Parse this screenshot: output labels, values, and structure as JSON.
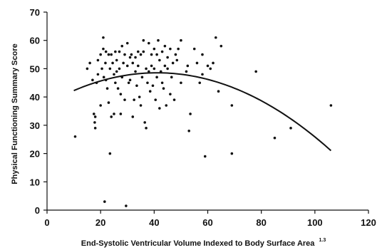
{
  "chart_data": {
    "type": "scatter",
    "title": "",
    "xlabel": "End-Systolic Ventricular Volume Indexed to Body Surface Area",
    "xlabel_superscript": "1.3",
    "ylabel": "Physical Functioning Summary Score",
    "xlim": [
      0,
      120
    ],
    "ylim": [
      0,
      70
    ],
    "xticks": [
      0,
      20,
      40,
      60,
      80,
      100,
      120
    ],
    "yticks": [
      0,
      10,
      20,
      30,
      40,
      50,
      60,
      70
    ],
    "grid": false,
    "legend": "none",
    "point_color": "#111111",
    "curve_color": "#111111",
    "fit_curve": {
      "type": "quadratic",
      "x": [
        10,
        15,
        20,
        25,
        30,
        35,
        40,
        45,
        50,
        55,
        60,
        65,
        70,
        75,
        80,
        85,
        90,
        95,
        100,
        106
      ],
      "y": [
        42.0,
        43.8,
        45.4,
        46.7,
        47.7,
        48.5,
        48.9,
        48.9,
        48.6,
        47.9,
        46.8,
        45.3,
        43.3,
        40.9,
        38.0,
        34.8,
        31.2,
        27.2,
        27.2,
        23.3
      ]
    },
    "points": [
      [
        10.5,
        26
      ],
      [
        15,
        50
      ],
      [
        16,
        52
      ],
      [
        17,
        46
      ],
      [
        17.5,
        34
      ],
      [
        17.8,
        31
      ],
      [
        18,
        29
      ],
      [
        18,
        33
      ],
      [
        18.5,
        45
      ],
      [
        19,
        53
      ],
      [
        19,
        48
      ],
      [
        20,
        55
      ],
      [
        20,
        37
      ],
      [
        20.5,
        50
      ],
      [
        21,
        57
      ],
      [
        21,
        61
      ],
      [
        21.2,
        47
      ],
      [
        21.5,
        3
      ],
      [
        21.8,
        52
      ],
      [
        22,
        56
      ],
      [
        22,
        46
      ],
      [
        22.5,
        43
      ],
      [
        23,
        55
      ],
      [
        23,
        38
      ],
      [
        23.5,
        50
      ],
      [
        23.5,
        20
      ],
      [
        24,
        55
      ],
      [
        24,
        33
      ],
      [
        24.5,
        52
      ],
      [
        25,
        34
      ],
      [
        25,
        48
      ],
      [
        25.5,
        56
      ],
      [
        25.5,
        45
      ],
      [
        26,
        49
      ],
      [
        26,
        53
      ],
      [
        26.5,
        43
      ],
      [
        27,
        56
      ],
      [
        27,
        50
      ],
      [
        27.5,
        34
      ],
      [
        27.5,
        41
      ],
      [
        28,
        58
      ],
      [
        28,
        47
      ],
      [
        28.5,
        52
      ],
      [
        29,
        55
      ],
      [
        29,
        39
      ],
      [
        29.5,
        1.5
      ],
      [
        30,
        51
      ],
      [
        30,
        59
      ],
      [
        30.5,
        45
      ],
      [
        31,
        54
      ],
      [
        31,
        46
      ],
      [
        31.5,
        55
      ],
      [
        32,
        52
      ],
      [
        32,
        33
      ],
      [
        32.5,
        39
      ],
      [
        33,
        54
      ],
      [
        33,
        49
      ],
      [
        33.5,
        44
      ],
      [
        34,
        56
      ],
      [
        34,
        51
      ],
      [
        34.5,
        40
      ],
      [
        35,
        55
      ],
      [
        35,
        37
      ],
      [
        35.5,
        47
      ],
      [
        36,
        56
      ],
      [
        36,
        60
      ],
      [
        36.5,
        31
      ],
      [
        37,
        50
      ],
      [
        37,
        29
      ],
      [
        37.5,
        45
      ],
      [
        38,
        59
      ],
      [
        38,
        49
      ],
      [
        38.5,
        42
      ],
      [
        39,
        55
      ],
      [
        39,
        51
      ],
      [
        39.5,
        44
      ],
      [
        40,
        57
      ],
      [
        40,
        50
      ],
      [
        40.5,
        39
      ],
      [
        41,
        55
      ],
      [
        41,
        47
      ],
      [
        41.5,
        60
      ],
      [
        42,
        53
      ],
      [
        42,
        36
      ],
      [
        42.5,
        49
      ],
      [
        43,
        56
      ],
      [
        43,
        45
      ],
      [
        43.5,
        43
      ],
      [
        44,
        51
      ],
      [
        44,
        58
      ],
      [
        44.5,
        37
      ],
      [
        45,
        54
      ],
      [
        45,
        50
      ],
      [
        46,
        57
      ],
      [
        46,
        41
      ],
      [
        46.5,
        47
      ],
      [
        47,
        52
      ],
      [
        47.5,
        39
      ],
      [
        48,
        55
      ],
      [
        48.5,
        53
      ],
      [
        49,
        57
      ],
      [
        50,
        45
      ],
      [
        50,
        60
      ],
      [
        52,
        49
      ],
      [
        52.5,
        51
      ],
      [
        53,
        28
      ],
      [
        53.5,
        34
      ],
      [
        55,
        57
      ],
      [
        56,
        52
      ],
      [
        57,
        45
      ],
      [
        58,
        55
      ],
      [
        58,
        48
      ],
      [
        59,
        19
      ],
      [
        60,
        51
      ],
      [
        61,
        50
      ],
      [
        62,
        52
      ],
      [
        63,
        61
      ],
      [
        64,
        42
      ],
      [
        65,
        58
      ],
      [
        69,
        37
      ],
      [
        69,
        20
      ],
      [
        78,
        49
      ],
      [
        85,
        25.5
      ],
      [
        91,
        29
      ],
      [
        106,
        37
      ]
    ]
  }
}
